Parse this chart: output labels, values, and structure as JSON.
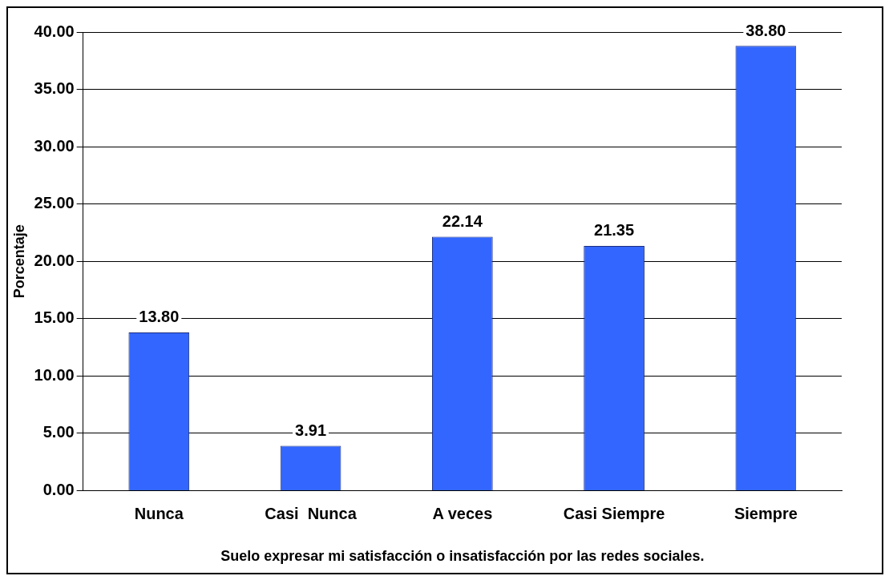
{
  "chart_data": {
    "type": "bar",
    "xlabel": "Suelo expresar mi satisfacción o insatisfacción por las redes sociales.",
    "ylabel": "Porcentaje",
    "categories": [
      "Nunca",
      "Casi  Nunca",
      "A veces",
      "Casi Siempre",
      "Siempre"
    ],
    "values": [
      13.8,
      3.91,
      22.14,
      21.35,
      38.8
    ],
    "color": "#3366ff",
    "value_labels": [
      "13.80",
      "3.91",
      "22.14",
      "21.35",
      "38.80"
    ],
    "ylim": [
      0,
      40
    ],
    "yticks": [
      {
        "value": 0,
        "label": "0.00"
      },
      {
        "value": 5,
        "label": "5.00"
      },
      {
        "value": 10,
        "label": "10.00"
      },
      {
        "value": 15,
        "label": "15.00"
      },
      {
        "value": 20,
        "label": "20.00"
      },
      {
        "value": 25,
        "label": "25.00"
      },
      {
        "value": 30,
        "label": "30.00"
      },
      {
        "value": 35,
        "label": "35.00"
      },
      {
        "value": 40,
        "label": "40.00"
      }
    ],
    "grid": "y",
    "legend": false
  }
}
